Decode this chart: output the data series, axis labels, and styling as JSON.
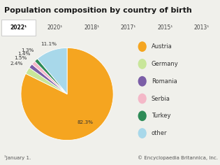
{
  "title": "Population composition by country of birth",
  "tab_labels": [
    "2022¹",
    "2020¹",
    "2018¹",
    "2017¹",
    "2015¹",
    "2013¹"
  ],
  "active_tab": 0,
  "slices": [
    {
      "label": "Austria",
      "value": 82.3,
      "color": "#f5a520",
      "pct_label": "82.3%",
      "label_dist": 0.73
    },
    {
      "label": "Germany",
      "value": 2.4,
      "color": "#c8e69a",
      "pct_label": "2.4%",
      "label_dist": 1.28
    },
    {
      "label": "Romania",
      "value": 1.5,
      "color": "#7b5ea7",
      "pct_label": "1.5%",
      "label_dist": 1.28
    },
    {
      "label": "Serbia",
      "value": 1.4,
      "color": "#f4b8c8",
      "pct_label": "1.4%",
      "label_dist": 1.28
    },
    {
      "label": "Turkey",
      "value": 1.3,
      "color": "#2e8b57",
      "pct_label": "1.3%",
      "label_dist": 1.28
    },
    {
      "label": "other",
      "value": 11.1,
      "color": "#a8d8ea",
      "pct_label": "11.1%",
      "label_dist": 1.15
    }
  ],
  "footnote": "¹January 1.",
  "copyright": "© Encyclopaedia Britannica, Inc.",
  "bg_color": "#f0f0eb",
  "tab_bg": "#d8d8d4",
  "active_tab_bg": "#ffffff",
  "title_fontsize": 8.0,
  "tab_fontsize": 5.5,
  "label_fontsize": 5.2,
  "legend_fontsize": 6.0,
  "footnote_fontsize": 5.0,
  "startangle": 90,
  "counterclock": false
}
